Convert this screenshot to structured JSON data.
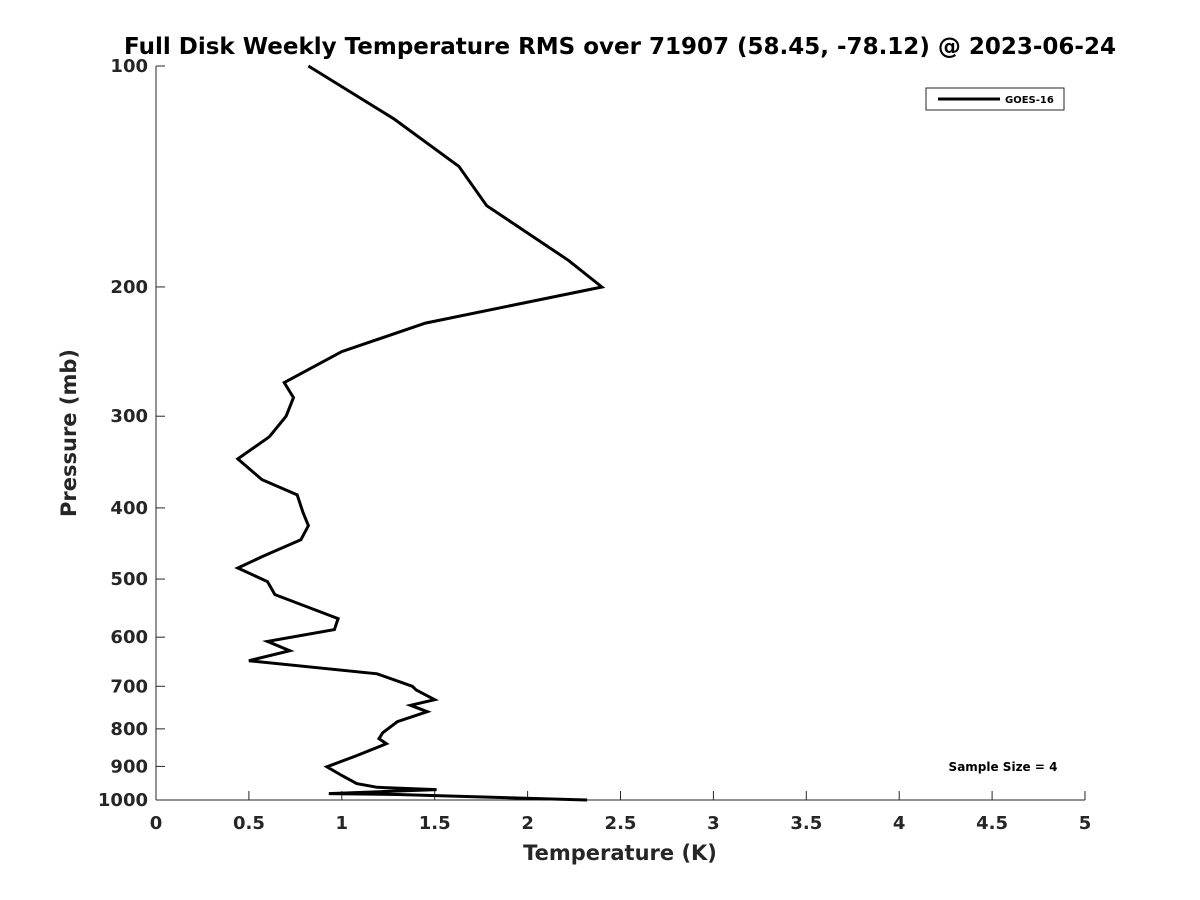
{
  "chart_data": {
    "type": "line",
    "title": "Full Disk Weekly Temperature RMS over 71907 (58.45, -78.12) @ 2023-06-24",
    "xlabel": "Temperature (K)",
    "ylabel": "Pressure (mb)",
    "xlim": [
      0,
      5
    ],
    "ylim": [
      100,
      1000
    ],
    "yscale": "log",
    "y_reversed": true,
    "x_ticks": [
      "0",
      "0.5",
      "1",
      "1.5",
      "2",
      "2.5",
      "3",
      "3.5",
      "4",
      "4.5",
      "5"
    ],
    "y_ticks": [
      "100",
      "200",
      "300",
      "400",
      "500",
      "600",
      "700",
      "800",
      "900",
      "1000"
    ],
    "grid": false,
    "legend_position": "top-right",
    "annotation": "Sample Size = 4",
    "series": [
      {
        "name": "GOES-16",
        "color": "#000000",
        "x": [
          0.82,
          1.28,
          1.63,
          1.78,
          2.22,
          2.4,
          1.45,
          1.0,
          0.69,
          0.74,
          0.7,
          0.61,
          0.44,
          0.57,
          0.76,
          0.79,
          0.82,
          0.78,
          0.58,
          0.44,
          0.6,
          0.64,
          0.98,
          0.96,
          0.6,
          0.72,
          0.5,
          1.19,
          1.38,
          1.4,
          1.5,
          1.37,
          1.46,
          1.3,
          1.22,
          1.2,
          1.24,
          1.08,
          0.92,
          1.0,
          1.08,
          1.19,
          1.51,
          0.93,
          1.3,
          2.32
        ],
        "y": [
          100,
          118,
          137,
          155,
          184,
          200,
          224,
          245,
          270,
          283,
          300,
          320,
          343,
          366,
          384,
          405,
          423,
          442,
          465,
          483,
          504,
          525,
          566,
          586,
          608,
          626,
          646,
          673,
          700,
          708,
          730,
          743,
          758,
          782,
          810,
          825,
          838,
          870,
          901,
          926,
          950,
          961,
          968,
          980,
          983,
          1000
        ]
      }
    ]
  }
}
